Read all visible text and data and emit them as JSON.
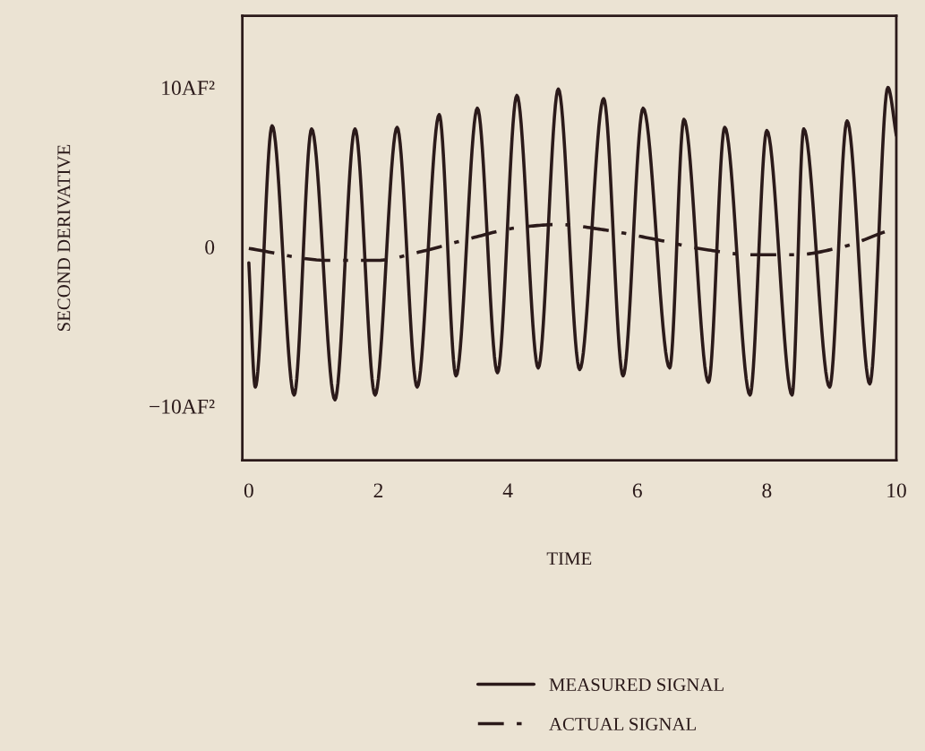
{
  "chart_data": {
    "type": "line",
    "xlabel": "TIME",
    "ylabel": "SECOND DERIVATIVE",
    "xlim": [
      -0.1,
      10
    ],
    "ylim": [
      -13.4,
      14.5
    ],
    "xticks": [
      0,
      2,
      4,
      6,
      8,
      10
    ],
    "yticks": [
      {
        "value": -10,
        "label": "−10AF²"
      },
      0,
      {
        "value": 10,
        "label": "10AF²"
      }
    ],
    "grid": false,
    "legend": "bottom",
    "series": [
      {
        "name": "MEASURED SIGNAL",
        "color": "#2b1a1a",
        "line_style": "solid",
        "x": [
          0,
          0.1,
          0.36,
          0.7,
          0.97,
          1.33,
          1.64,
          1.95,
          2.29,
          2.6,
          2.94,
          3.2,
          3.53,
          3.84,
          4.14,
          4.47,
          4.78,
          5.11,
          5.48,
          5.78,
          6.09,
          6.5,
          6.72,
          7.1,
          7.35,
          7.74,
          8.0,
          8.39,
          8.57,
          8.97,
          9.24,
          9.59,
          9.87,
          10.0
        ],
        "values": [
          -1,
          -8.8,
          7.6,
          -9.3,
          7.4,
          -9.6,
          7.4,
          -9.3,
          7.5,
          -8.8,
          8.3,
          -8.1,
          8.7,
          -7.9,
          9.5,
          -7.6,
          9.9,
          -7.7,
          9.3,
          -8.1,
          8.7,
          -7.6,
          8.0,
          -8.5,
          7.5,
          -9.3,
          7.3,
          -9.3,
          7.4,
          -8.8,
          7.9,
          -8.6,
          10.0,
          7
        ]
      },
      {
        "name": "ACTUAL SIGNAL",
        "color": "#2b1a1a",
        "line_style": "dashdot",
        "x": [
          0,
          1.23,
          1.97,
          2.66,
          3.45,
          4.14,
          4.77,
          5.48,
          6.24,
          7.1,
          7.77,
          8.44,
          9.17,
          9.82
        ],
        "values": [
          -0.1,
          -0.85,
          -0.85,
          -0.3,
          0.56,
          1.2,
          1.4,
          1.07,
          0.5,
          -0.2,
          -0.5,
          -0.5,
          0.0,
          0.94
        ]
      }
    ]
  }
}
